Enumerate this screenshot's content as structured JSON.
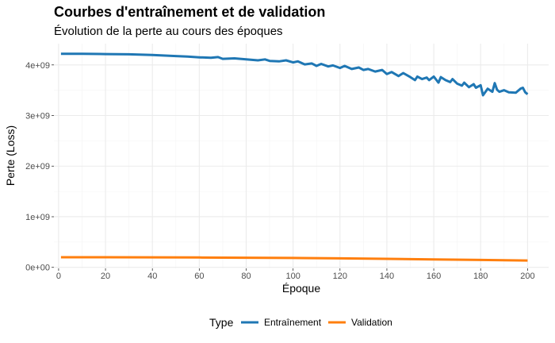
{
  "chart_data": {
    "type": "line",
    "title": "Courbes d'entraînement et de validation",
    "subtitle": "Évolution de la perte au cours des époques",
    "xlabel": "Époque",
    "ylabel": "Perte (Loss)",
    "xlim": [
      -2,
      209
    ],
    "ylim": [
      -20000000,
      4420000000
    ],
    "x_ticks": [
      0,
      20,
      40,
      60,
      80,
      100,
      120,
      140,
      160,
      180,
      200
    ],
    "y_ticks": [
      {
        "value": 0,
        "label": "0e+00"
      },
      {
        "value": 1000000000,
        "label": "1e+09"
      },
      {
        "value": 2000000000,
        "label": "2e+09"
      },
      {
        "value": 3000000000,
        "label": "3e+09"
      },
      {
        "value": 4000000000,
        "label": "4e+09"
      }
    ],
    "grid": true,
    "legend": {
      "title": "Type",
      "position": "bottom"
    },
    "series": [
      {
        "name": "Entraînement",
        "color": "#1f77b4",
        "x": [
          1,
          10,
          20,
          30,
          40,
          50,
          55,
          60,
          65,
          68,
          70,
          75,
          80,
          85,
          88,
          90,
          94,
          97,
          100,
          102,
          105,
          108,
          110,
          112,
          115,
          117,
          120,
          122,
          125,
          128,
          130,
          132,
          135,
          138,
          140,
          142,
          145,
          147,
          150,
          152,
          153,
          155,
          157,
          158,
          160,
          162,
          163,
          165,
          167,
          168,
          170,
          172,
          173,
          175,
          177,
          178,
          180,
          181,
          183,
          185,
          186,
          187,
          188,
          190,
          192,
          195,
          197,
          198,
          199,
          200
        ],
        "values": [
          4220000000,
          4220000000,
          4215000000,
          4210000000,
          4195000000,
          4175000000,
          4165000000,
          4150000000,
          4140000000,
          4155000000,
          4120000000,
          4130000000,
          4110000000,
          4090000000,
          4110000000,
          4080000000,
          4070000000,
          4090000000,
          4050000000,
          4070000000,
          4010000000,
          4030000000,
          3980000000,
          4020000000,
          3970000000,
          3990000000,
          3940000000,
          3980000000,
          3920000000,
          3950000000,
          3900000000,
          3920000000,
          3870000000,
          3900000000,
          3820000000,
          3860000000,
          3780000000,
          3840000000,
          3760000000,
          3700000000,
          3770000000,
          3720000000,
          3750000000,
          3700000000,
          3770000000,
          3650000000,
          3760000000,
          3700000000,
          3660000000,
          3720000000,
          3630000000,
          3590000000,
          3650000000,
          3560000000,
          3620000000,
          3550000000,
          3600000000,
          3400000000,
          3530000000,
          3470000000,
          3640000000,
          3510000000,
          3470000000,
          3500000000,
          3460000000,
          3450000000,
          3530000000,
          3550000000,
          3460000000,
          3420000000
        ]
      },
      {
        "name": "Validation",
        "color": "#ff7f0e",
        "x": [
          1,
          20,
          40,
          60,
          80,
          100,
          120,
          140,
          160,
          180,
          200
        ],
        "values": [
          200000000,
          200000000,
          198000000,
          195000000,
          190000000,
          185000000,
          177000000,
          168000000,
          157000000,
          146000000,
          135000000
        ]
      }
    ]
  }
}
